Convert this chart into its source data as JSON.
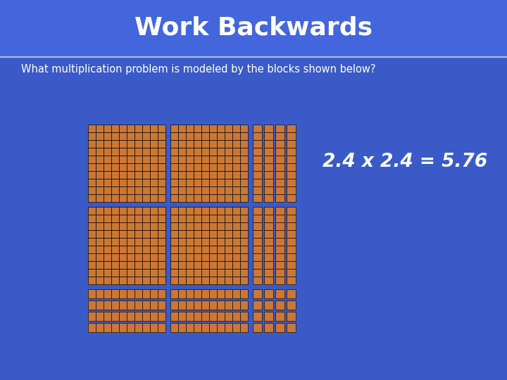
{
  "bg_color": "#3a5bc7",
  "title_bg_color": "#4466dd",
  "title_text": "Work Backwards",
  "title_color": "#ffffff",
  "title_fontsize": 26,
  "subtitle_text": "What multiplication problem is modeled by the blocks shown below?",
  "subtitle_fontsize": 10.5,
  "answer_text": "2.4 x 2.4 = 5.76",
  "answer_fontsize": 19,
  "block_color": "#cc7733",
  "block_edge_color": "#111111",
  "separator_color": "#aabbee",
  "title_bar_height": 80,
  "fig_width": 720,
  "fig_height": 540
}
